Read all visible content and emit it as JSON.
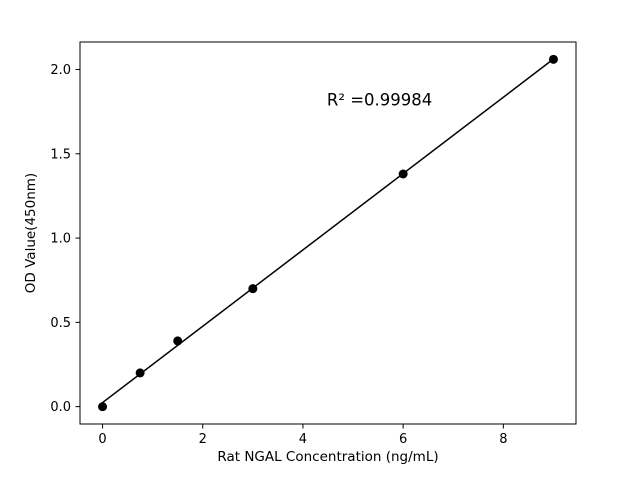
{
  "chart_data": {
    "type": "scatter",
    "title": "",
    "xlabel": "Rat NGAL Concentration (ng/mL)",
    "ylabel": "OD Value(450nm)",
    "x": [
      0,
      0.75,
      1.5,
      3,
      6,
      9
    ],
    "y": [
      0.0,
      0.2,
      0.39,
      0.7,
      1.38,
      2.06
    ],
    "fit_line": {
      "x": [
        0,
        9
      ],
      "y": [
        0.024,
        2.062
      ]
    },
    "annotation": {
      "text": "R² =0.99984",
      "x": 5.53,
      "y": 1.82
    },
    "xticks": [
      0,
      2,
      4,
      6,
      8
    ],
    "yticks": [
      0.0,
      0.5,
      1.0,
      1.5,
      2.0
    ],
    "xlim": [
      -0.45,
      9.45
    ],
    "ylim": [
      -0.103,
      2.163
    ],
    "marker_size": 4.5,
    "line_width": 1.5,
    "marker_color": "#000000",
    "line_color": "#000000",
    "axis_color": "#000000",
    "background": "#ffffff",
    "grid": false,
    "legend": "none"
  }
}
